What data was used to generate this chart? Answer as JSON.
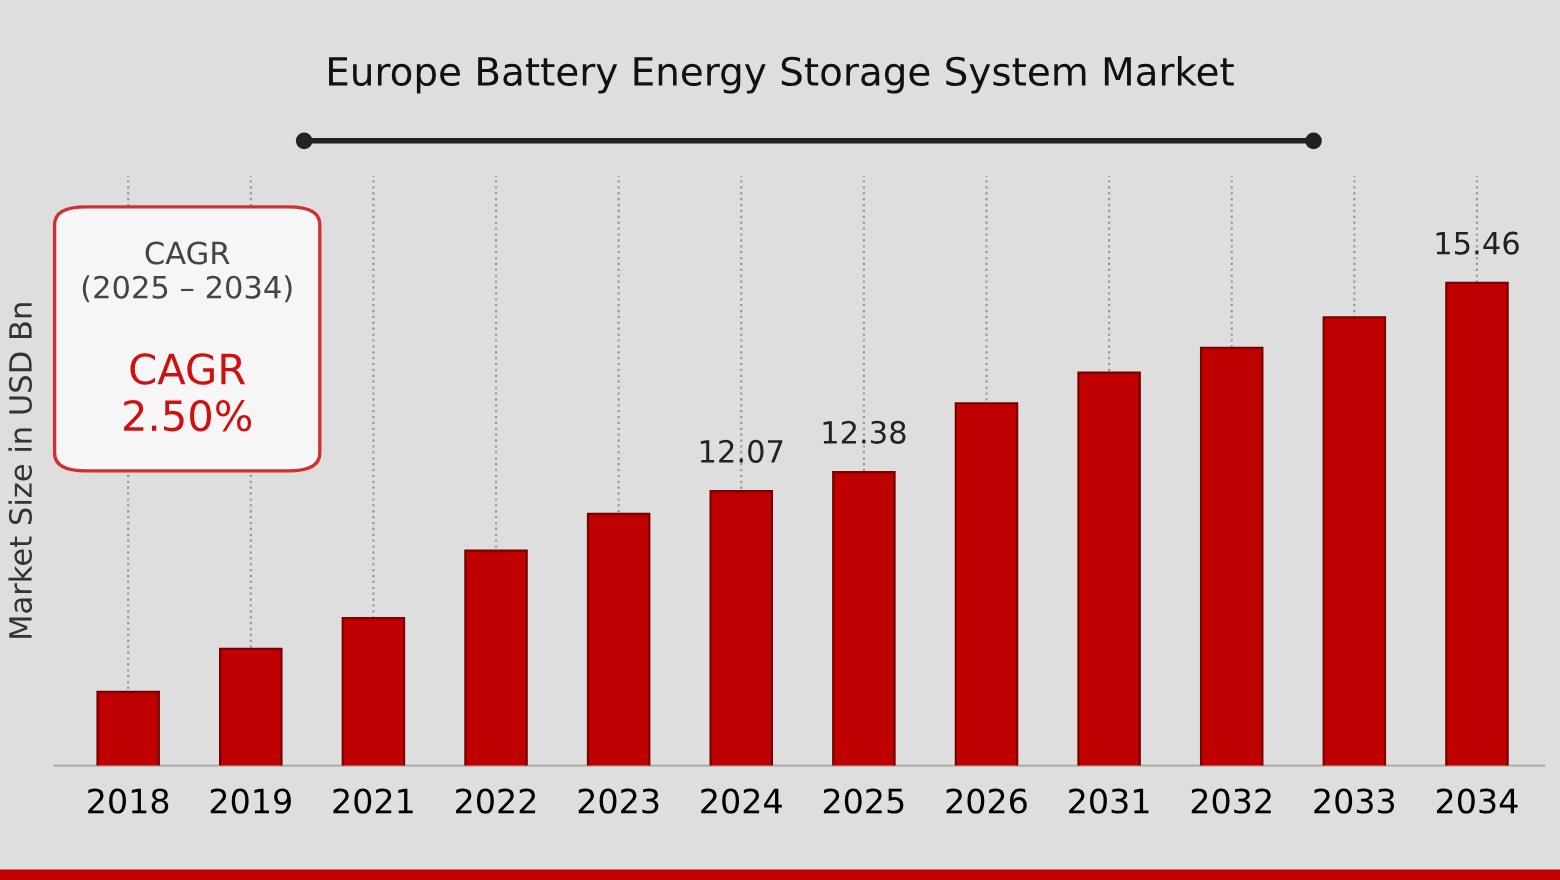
{
  "chart_data": {
    "type": "bar",
    "title": "Europe Battery Energy Storage System Market",
    "ylabel": "Market Size in USD Bn",
    "categories": [
      "2018",
      "2019",
      "2021",
      "2022",
      "2023",
      "2024",
      "2025",
      "2026",
      "2031",
      "2032",
      "2033",
      "2034"
    ],
    "values": [
      8.8,
      9.5,
      10.0,
      11.1,
      11.7,
      12.07,
      12.38,
      13.5,
      14.0,
      14.4,
      14.9,
      15.46
    ],
    "value_labels": [
      null,
      null,
      null,
      null,
      null,
      "12.07",
      "12.38",
      null,
      null,
      null,
      null,
      "15.46"
    ],
    "ylim": [
      7.6,
      17.2
    ],
    "color": "#c00000",
    "grid": "x",
    "annotations": [
      "CAGR\n(2025 – 2034)",
      "CAGR\n2.50%"
    ]
  }
}
